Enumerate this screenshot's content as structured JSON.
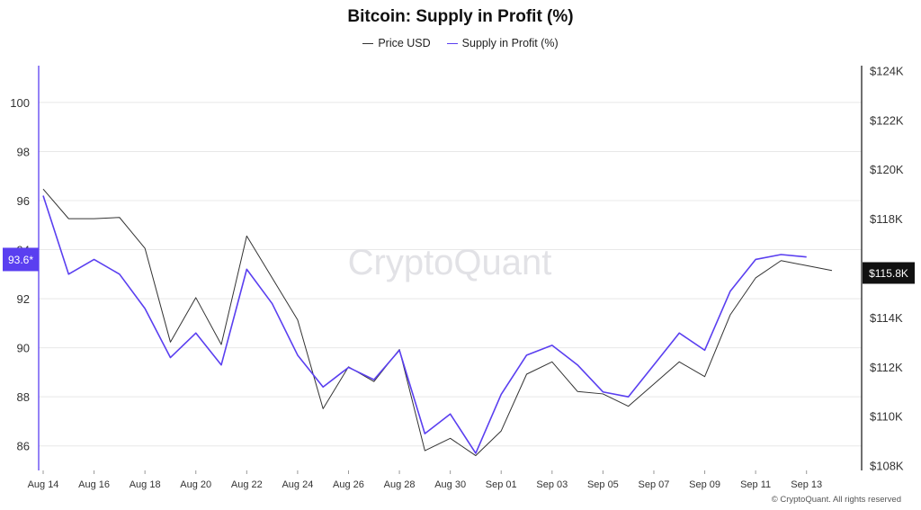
{
  "chart_data": {
    "type": "line",
    "title": "Bitcoin: Supply in Profit (%)",
    "x": [
      "Aug 14",
      "Aug 15",
      "Aug 16",
      "Aug 17",
      "Aug 18",
      "Aug 19",
      "Aug 20",
      "Aug 21",
      "Aug 22",
      "Aug 23",
      "Aug 24",
      "Aug 25",
      "Aug 26",
      "Aug 27",
      "Aug 28",
      "Aug 29",
      "Aug 30",
      "Aug 31",
      "Sep 01",
      "Sep 02",
      "Sep 03",
      "Sep 04",
      "Sep 05",
      "Sep 06",
      "Sep 07",
      "Sep 08",
      "Sep 09",
      "Sep 10",
      "Sep 11",
      "Sep 12",
      "Sep 13",
      "Sep 14"
    ],
    "x_tick_labels": [
      "Aug 14",
      "Aug 16",
      "Aug 18",
      "Aug 20",
      "Aug 22",
      "Aug 24",
      "Aug 26",
      "Aug 28",
      "Aug 30",
      "Sep 01",
      "Sep 03",
      "Sep 05",
      "Sep 07",
      "Sep 09",
      "Sep 11",
      "Sep 13"
    ],
    "series": [
      {
        "name": "Price USD",
        "axis": "right",
        "color": "#333333",
        "values": [
          119200,
          118000,
          118000,
          118050,
          116800,
          113000,
          114800,
          112900,
          117300,
          115600,
          113900,
          110300,
          112000,
          111400,
          112700,
          108600,
          109100,
          108400,
          109400,
          111700,
          112200,
          111000,
          110900,
          110400,
          111300,
          112200,
          111600,
          114100,
          115600,
          116300,
          116100,
          115900
        ]
      },
      {
        "name": "Supply in Profit (%)",
        "axis": "left",
        "color": "#5a3ff0",
        "values": [
          96.2,
          93.0,
          93.6,
          93.0,
          91.6,
          89.6,
          90.6,
          89.3,
          93.2,
          91.8,
          89.7,
          88.4,
          89.2,
          88.7,
          89.9,
          86.5,
          87.3,
          85.7,
          88.1,
          89.7,
          90.1,
          89.3,
          88.2,
          88.0,
          89.3,
          90.6,
          89.9,
          92.3,
          93.6,
          93.8,
          93.7,
          null
        ]
      }
    ],
    "y_left": {
      "ticks": [
        86,
        88,
        90,
        92,
        94,
        96,
        98,
        100
      ],
      "range": [
        85,
        101.5
      ]
    },
    "y_right": {
      "ticks": [
        "$108K",
        "$110K",
        "$112K",
        "$114K",
        "$116K",
        "$118K",
        "$120K",
        "$122K",
        "$124K"
      ],
      "range": [
        107800,
        124200
      ]
    },
    "current_left_label": "93.6*",
    "current_right_label": "$115.8K",
    "current_right_value": 115800,
    "current_left_value": 93.6,
    "watermark": "CryptoQuant",
    "legend_placement": "top-center",
    "grid": true,
    "accent_color": "#5a3ff0"
  },
  "copyright": "© CryptoQuant. All rights reserved"
}
